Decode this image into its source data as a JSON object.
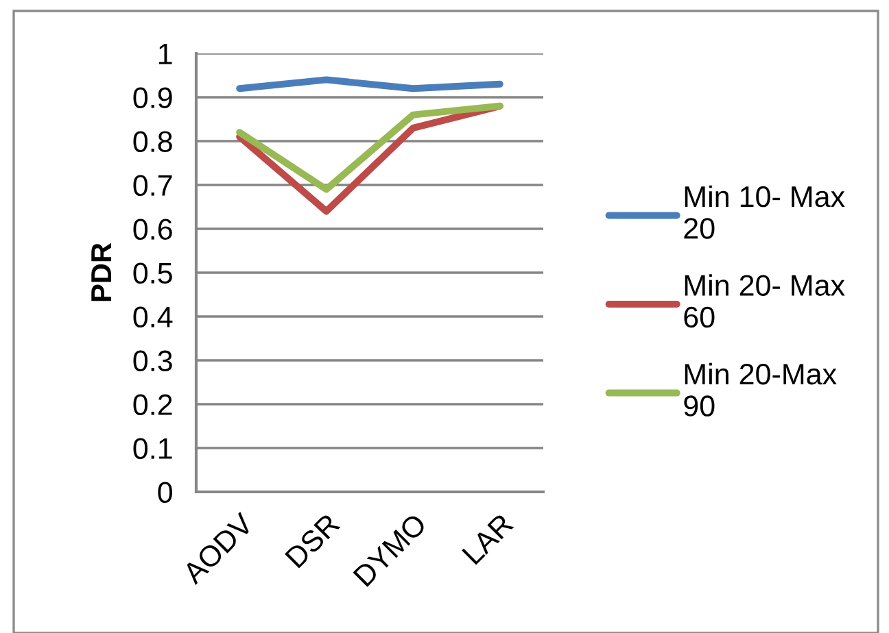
{
  "chart_data": {
    "type": "line",
    "ylabel": "PDR",
    "categories": [
      "AODV",
      "DSR",
      "DYMO",
      "LAR"
    ],
    "series": [
      {
        "name": "Min 10- Max 20",
        "color": "#4a7ebb",
        "values": [
          0.92,
          0.94,
          0.92,
          0.93
        ]
      },
      {
        "name": "Min 20- Max 60",
        "color": "#be4b48",
        "values": [
          0.81,
          0.64,
          0.83,
          0.88
        ]
      },
      {
        "name": "Min 20-Max 90",
        "color": "#98b954",
        "values": [
          0.82,
          0.69,
          0.86,
          0.88
        ]
      }
    ],
    "ylim": [
      0,
      1
    ],
    "yticks": [
      0,
      0.1,
      0.2,
      0.3,
      0.4,
      0.5,
      0.6,
      0.7,
      0.8,
      0.9,
      1
    ],
    "grid": "y",
    "legend": "right",
    "marker": "none",
    "line_style": "solid"
  }
}
